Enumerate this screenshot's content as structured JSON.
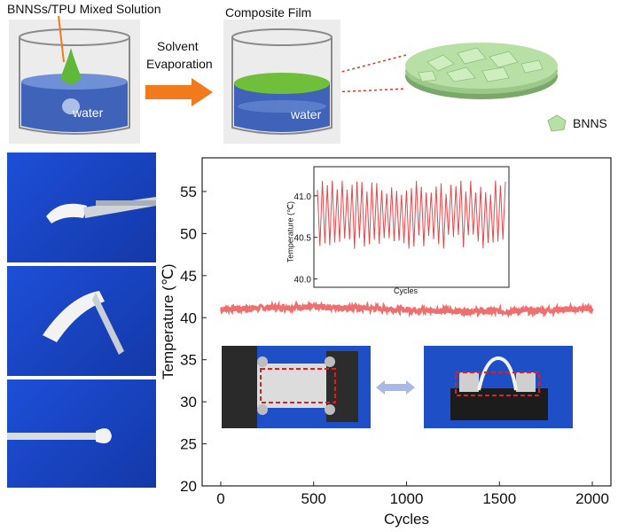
{
  "schematic": {
    "step1_label": "BNNSs/TPU Mixed Solution",
    "step2_label": "Composite Film",
    "arrow_label_line1": "Solvent",
    "arrow_label_line2": "Evaporation",
    "water_label": "water",
    "legend_label": "BNNS",
    "colors": {
      "water": "#3f63b8",
      "film": "#6fbf3a",
      "arrow": "#f07a1c",
      "bnns": "#b8e0a6"
    }
  },
  "chart_data": [
    {
      "type": "line",
      "xlabel": "Cycles",
      "ylabel": "Temperature (℃)",
      "xlim": [
        -100,
        2100
      ],
      "ylim": [
        20,
        59
      ],
      "x_ticks": [
        0,
        500,
        1000,
        1500,
        2000
      ],
      "y_ticks": [
        20,
        25,
        30,
        35,
        40,
        45,
        50,
        55
      ],
      "series": [
        {
          "color": "#ef6f6f",
          "x_range": [
            0,
            2000
          ],
          "mean": 41.0,
          "noise": 0.35
        }
      ]
    },
    {
      "type": "line",
      "xlabel": "Cycles",
      "ylabel": "Temperature (℃)",
      "ylim": [
        39.9,
        41.35
      ],
      "y_ticks": [
        40.0,
        40.5,
        41.0
      ],
      "series": [
        {
          "color": "#e8474b",
          "cycles": 38,
          "high": 41.1,
          "low": 40.45
        }
      ]
    }
  ]
}
